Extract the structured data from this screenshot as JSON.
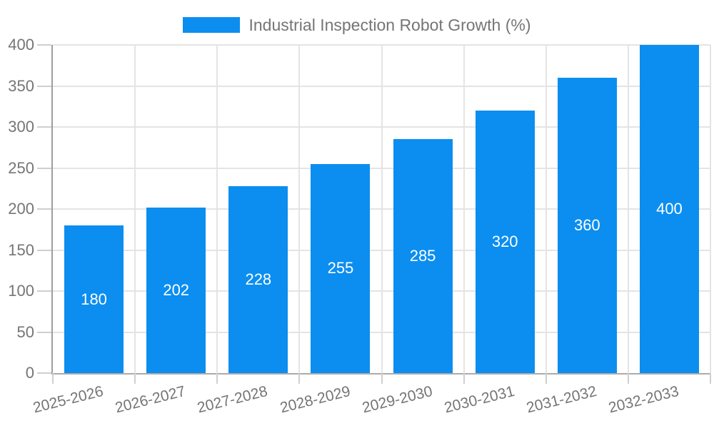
{
  "legend": {
    "label": "Industrial Inspection Robot Growth (%)",
    "swatch_color": "#0b8ef0"
  },
  "chart_data": {
    "type": "bar",
    "title": "Industrial Inspection Robot Growth (%)",
    "categories": [
      "2025-2026",
      "2026-2027",
      "2027-2028",
      "2028-2029",
      "2029-2030",
      "2030-2031",
      "2031-2032",
      "2032-2033"
    ],
    "values": [
      180,
      202,
      228,
      255,
      285,
      320,
      360,
      400
    ],
    "series_name": "Industrial Inspection Robot Growth (%)",
    "xlabel": "",
    "ylabel": "",
    "ylim": [
      0,
      400
    ],
    "yticks": [
      0,
      50,
      100,
      150,
      200,
      250,
      300,
      350,
      400
    ],
    "grid": true,
    "legend_position": "top",
    "bar_color": "#0b8ef0",
    "value_label_color": "#ffffff",
    "axis_text_color": "#757575",
    "gridline_color": "#e4e4e4",
    "x_label_rotation_deg": -14
  }
}
